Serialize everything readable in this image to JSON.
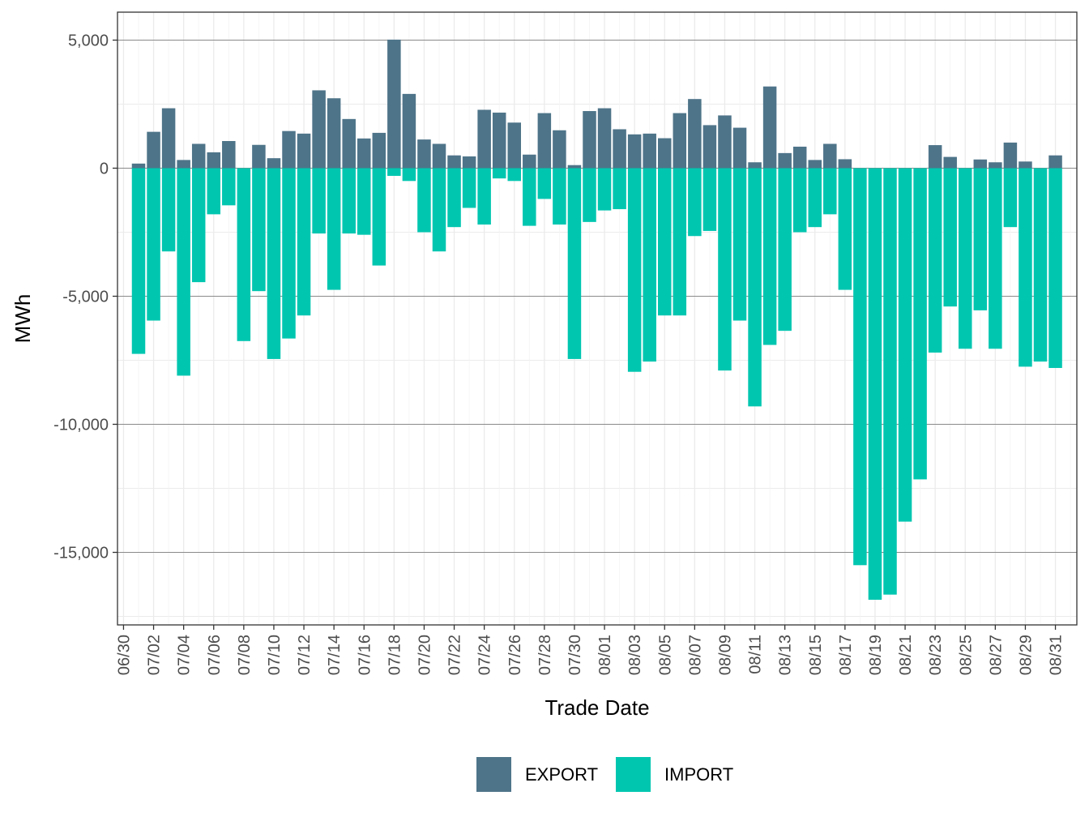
{
  "chart_data": {
    "type": "bar",
    "stacked": true,
    "title": "",
    "xlabel": "Trade Date",
    "ylabel": "MWh",
    "ylim": [
      -17600,
      6100
    ],
    "y_ticks": [
      5000,
      0,
      -5000,
      -10000,
      -15000
    ],
    "y_tick_labels": [
      "5,000",
      "0",
      "-5,000",
      "-10,000",
      "-15,000"
    ],
    "y_minor_ticks": [
      2500,
      -2500,
      -7500,
      -12500,
      -17500
    ],
    "x_tick_labels": [
      "06/30",
      "07/02",
      "07/04",
      "07/06",
      "07/08",
      "07/10",
      "07/12",
      "07/14",
      "07/16",
      "07/18",
      "07/20",
      "07/22",
      "07/24",
      "07/26",
      "07/28",
      "07/30",
      "08/01",
      "08/03",
      "08/05",
      "08/07",
      "08/09",
      "08/11",
      "08/13",
      "08/15",
      "08/17",
      "08/19",
      "08/21",
      "08/23",
      "08/25",
      "08/27",
      "08/29",
      "08/31"
    ],
    "categories": [
      "07/01",
      "07/02",
      "07/03",
      "07/04",
      "07/05",
      "07/06",
      "07/07",
      "07/08",
      "07/09",
      "07/10",
      "07/11",
      "07/12",
      "07/13",
      "07/14",
      "07/15",
      "07/16",
      "07/17",
      "07/18",
      "07/19",
      "07/20",
      "07/21",
      "07/22",
      "07/23",
      "07/24",
      "07/25",
      "07/26",
      "07/27",
      "07/28",
      "07/29",
      "07/30",
      "07/31",
      "08/01",
      "08/02",
      "08/03",
      "08/04",
      "08/05",
      "08/06",
      "08/07",
      "08/08",
      "08/09",
      "08/10",
      "08/11",
      "08/12",
      "08/13",
      "08/14",
      "08/15",
      "08/16",
      "08/17",
      "08/18",
      "08/19",
      "08/20",
      "08/21",
      "08/22",
      "08/23",
      "08/24",
      "08/25",
      "08/26",
      "08/27",
      "08/28",
      "08/29",
      "08/30",
      "08/31"
    ],
    "series": [
      {
        "name": "EXPORT",
        "color": "#4e7489",
        "values": [
          180,
          1420,
          2340,
          320,
          950,
          620,
          1060,
          0,
          910,
          390,
          1450,
          1350,
          3040,
          2730,
          1920,
          1160,
          1380,
          5020,
          2900,
          1120,
          950,
          500,
          460,
          2280,
          2170,
          1780,
          530,
          2150,
          1480,
          120,
          2230,
          2340,
          1520,
          1320,
          1350,
          1170,
          2150,
          2700,
          1680,
          2060,
          1580,
          230,
          3190,
          590,
          840,
          320,
          950,
          350,
          0,
          0,
          0,
          0,
          0,
          900,
          440,
          0,
          340,
          230,
          1000,
          260,
          0,
          500
        ]
      },
      {
        "name": "IMPORT",
        "color": "#00c6b0",
        "values": [
          -7250,
          -5950,
          -3250,
          -8100,
          -4450,
          -1800,
          -1450,
          -6750,
          -4800,
          -7450,
          -6650,
          -5750,
          -2550,
          -4750,
          -2550,
          -2600,
          -3800,
          -300,
          -500,
          -2500,
          -3250,
          -2300,
          -1550,
          -2200,
          -400,
          -500,
          -2250,
          -1200,
          -2200,
          -7450,
          -2100,
          -1650,
          -1600,
          -7950,
          -7550,
          -5750,
          -5750,
          -2650,
          -2450,
          -7900,
          -5950,
          -9300,
          -6900,
          -6350,
          -2500,
          -2300,
          -1800,
          -4750,
          -15500,
          -16850,
          -16650,
          -13800,
          -12150,
          -7200,
          -5400,
          -7050,
          -5550,
          -7050,
          -2300,
          -7750,
          -7550,
          -7800
        ]
      }
    ],
    "legend": {
      "position": "bottom"
    }
  }
}
